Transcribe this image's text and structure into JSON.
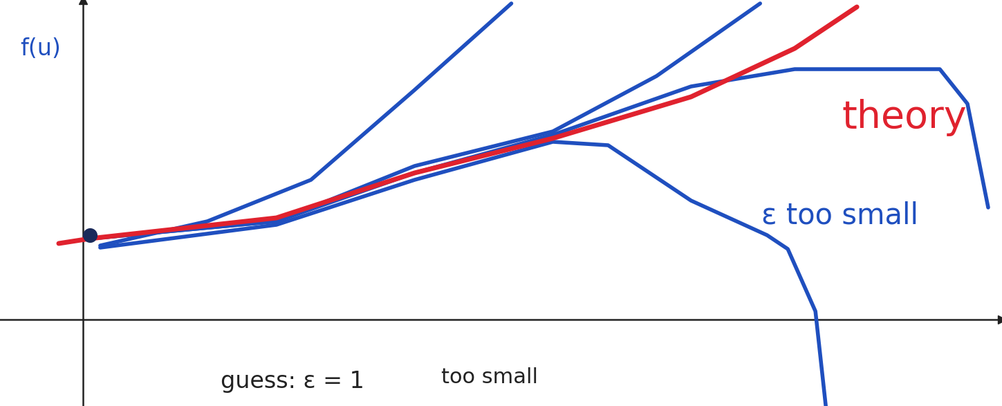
{
  "chart_data": {
    "type": "line",
    "y_label": "f(u)",
    "xlim": [
      -1.2,
      13.3
    ],
    "ylim": [
      -1.25,
      4.62
    ],
    "xticks": [],
    "yticks": [],
    "tick_labels": false,
    "grid": false,
    "series": [
      {
        "color": "#1f4fbf",
        "line_style": "solid",
        "x": [
          0.25,
          1.8,
          3.3,
          4.8,
          6.2
        ],
        "values": [
          1.07,
          1.42,
          2.02,
          3.32,
          4.57
        ]
      },
      {
        "color": "#1f4fbf",
        "line_style": "solid",
        "x": [
          0.1,
          2.8,
          4.8,
          6.8,
          8.3,
          9.8
        ],
        "values": [
          1.17,
          1.42,
          2.22,
          2.72,
          3.52,
          4.57
        ]
      },
      {
        "color": "#1f4fbf",
        "line_style": "solid",
        "x": [
          0.1,
          2.8,
          4.8,
          6.8,
          8.8,
          10.3,
          12.4,
          12.8,
          13.1
        ],
        "values": [
          1.17,
          1.42,
          2.12,
          2.67,
          3.37,
          3.62,
          3.62,
          3.12,
          1.62
        ]
      },
      {
        "color": "#1f4fbf",
        "line_style": "solid",
        "x": [
          0.25,
          2.8,
          4.8,
          6.8,
          7.6,
          8.8,
          9.9,
          10.2,
          10.6,
          10.75
        ],
        "values": [
          1.04,
          1.37,
          2.02,
          2.57,
          2.52,
          1.72,
          1.22,
          1.02,
          0.12,
          -1.25
        ]
      },
      {
        "color": "#e0222e",
        "line_style": "solid",
        "x": [
          -0.35,
          0.1,
          2.8,
          4.8,
          6.8,
          8.8,
          10.3,
          11.2
        ],
        "values": [
          1.1,
          1.17,
          1.47,
          2.12,
          2.62,
          3.22,
          3.92,
          4.52
        ]
      },
      {
        "type": "scatter",
        "marker": "o",
        "color": "#1a2a5a",
        "x": [
          0.1
        ],
        "values": [
          1.22
        ]
      }
    ],
    "annotations": [
      {
        "text": "theory",
        "color": "#e0222e"
      },
      {
        "text": "ε too small",
        "color": "#1f4fbf"
      },
      {
        "text": "guess: ε = 1",
        "color": "#222222"
      },
      {
        "text": "too small",
        "color": "#222222"
      }
    ]
  }
}
